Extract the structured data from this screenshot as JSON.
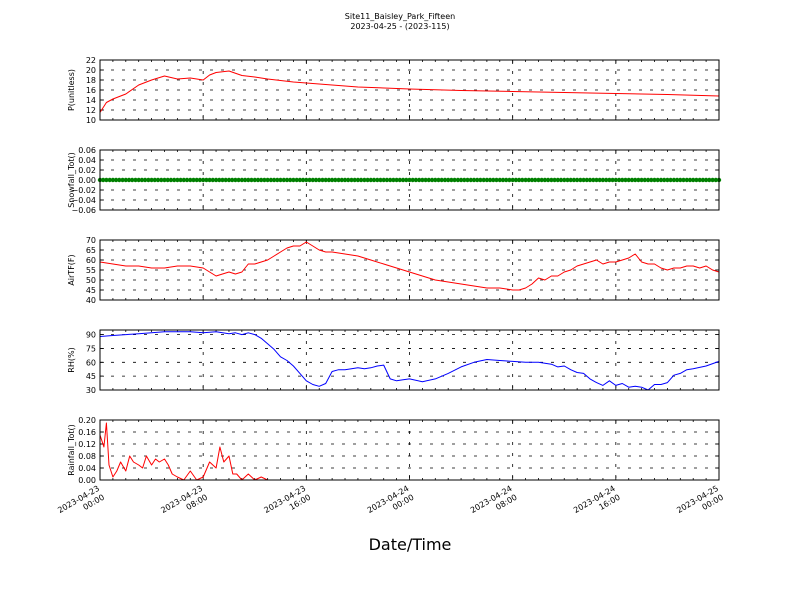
{
  "title_line1": "Site11_Baisley_Park_Fifteen",
  "title_line2": "2023-04-25 - (2023-115)",
  "xlabel": "Date/Time",
  "x_ticks": [
    {
      "value": 0,
      "date": "2023-04-23",
      "time": "00:00"
    },
    {
      "value": 8,
      "date": "2023-04-23",
      "time": "08:00"
    },
    {
      "value": 16,
      "date": "2023-04-23",
      "time": "16:00"
    },
    {
      "value": 24,
      "date": "2023-04-24",
      "time": "00:00"
    },
    {
      "value": 32,
      "date": "2023-04-24",
      "time": "08:00"
    },
    {
      "value": 40,
      "date": "2023-04-24",
      "time": "16:00"
    },
    {
      "value": 48,
      "date": "2023-04-25",
      "time": "00:00"
    }
  ],
  "chart_data": [
    {
      "type": "line",
      "ylabel": "P(unitless)",
      "ylim": [
        10,
        22
      ],
      "yticks": [
        10,
        12,
        14,
        16,
        18,
        20,
        22
      ],
      "grid": true,
      "color": "#ff0000",
      "x": [
        0,
        0.5,
        1,
        2,
        3,
        4,
        5,
        6,
        7,
        8,
        8.5,
        9,
        10,
        11,
        12,
        13,
        14,
        15,
        16,
        18,
        20,
        24,
        28,
        32,
        36,
        40,
        44,
        48
      ],
      "values": [
        11.5,
        13.5,
        14.2,
        15.2,
        17.0,
        18.0,
        18.8,
        18.2,
        18.4,
        18.0,
        19.0,
        19.5,
        19.8,
        18.9,
        18.6,
        18.2,
        17.9,
        17.6,
        17.4,
        17.0,
        16.6,
        16.2,
        15.9,
        15.7,
        15.5,
        15.3,
        15.1,
        14.8
      ]
    },
    {
      "type": "scatter",
      "ylabel": "Snowfall_Tot()",
      "ylim": [
        -0.06,
        0.06
      ],
      "yticks": [
        "−0.06",
        "−0.04",
        "−0.02",
        "0.00",
        "0.02",
        "0.04",
        "0.06"
      ],
      "grid": true,
      "color": "#008000",
      "x_range": [
        0,
        48
      ],
      "constant_value": 0.0
    },
    {
      "type": "line",
      "ylabel": "AirTF(F)",
      "ylim": [
        40,
        70
      ],
      "yticks": [
        40,
        45,
        50,
        55,
        60,
        65,
        70
      ],
      "grid": true,
      "color": "#ff0000",
      "x": [
        0,
        1,
        2,
        3,
        4,
        5,
        6,
        7,
        8,
        8.5,
        9,
        9.5,
        10,
        10.5,
        11,
        11.5,
        12,
        12.5,
        13,
        13.5,
        14,
        14.5,
        15,
        15.5,
        16,
        16.5,
        17,
        17.5,
        18,
        19,
        20,
        21,
        22,
        23,
        24,
        25,
        26,
        27,
        28,
        29,
        30,
        31,
        32,
        32.5,
        33,
        33.5,
        34,
        34.5,
        35,
        35.5,
        36,
        36.5,
        37,
        37.5,
        38,
        38.5,
        39,
        39.5,
        40,
        40.5,
        41,
        41.5,
        42,
        42.5,
        43,
        43.5,
        44,
        44.5,
        45,
        45.5,
        46,
        46.5,
        47,
        47.5,
        48
      ],
      "values": [
        59,
        58,
        57,
        57,
        56,
        56,
        57,
        57,
        56,
        54,
        52,
        53,
        54,
        53,
        54,
        58,
        58,
        59,
        60,
        62,
        64,
        66,
        67,
        67,
        69,
        67,
        65,
        64,
        64,
        63,
        62,
        60,
        58,
        56,
        54,
        52,
        50,
        49,
        48,
        47,
        46,
        46,
        45,
        45,
        46,
        48,
        51,
        50,
        52,
        52,
        54,
        55,
        57,
        58,
        59,
        60,
        58,
        59,
        59,
        60,
        61,
        63,
        59,
        58,
        58,
        56,
        55,
        56,
        56,
        57,
        57,
        56,
        57,
        55,
        54
      ]
    },
    {
      "type": "line",
      "ylabel": "RH(%)",
      "ylim": [
        30,
        95
      ],
      "yticks": [
        30,
        45,
        60,
        75,
        90
      ],
      "grid": true,
      "color": "#0000ff",
      "x": [
        0,
        1,
        2,
        3,
        4,
        5,
        6,
        7,
        8,
        9,
        10,
        10.5,
        11,
        11.5,
        12,
        12.5,
        13,
        13.5,
        14,
        14.5,
        15,
        15.5,
        16,
        16.5,
        17,
        17.5,
        18,
        18.5,
        19,
        19.5,
        20,
        20.5,
        21,
        21.5,
        22,
        22.5,
        23,
        23.5,
        24,
        25,
        26,
        27,
        28,
        29,
        30,
        31,
        32,
        33,
        34,
        34.5,
        35,
        35.5,
        36,
        36.5,
        37,
        37.5,
        38,
        38.5,
        39,
        39.5,
        40,
        40.5,
        41,
        41.5,
        42,
        42.5,
        43,
        43.5,
        44,
        44.5,
        45,
        45.5,
        46,
        47,
        48
      ],
      "values": [
        88,
        89,
        90,
        91,
        92,
        93,
        93,
        93,
        92,
        93,
        91,
        92,
        90,
        92,
        90,
        86,
        80,
        74,
        66,
        62,
        56,
        48,
        40,
        36,
        34,
        37,
        50,
        52,
        52,
        53,
        54,
        53,
        54,
        56,
        57,
        42,
        40,
        41,
        42,
        39,
        42,
        48,
        55,
        60,
        63,
        62,
        61,
        60,
        60,
        59,
        58,
        55,
        56,
        52,
        49,
        48,
        42,
        38,
        35,
        40,
        35,
        37,
        33,
        34,
        33,
        30,
        36,
        36,
        38,
        46,
        48,
        52,
        53,
        56,
        61
      ]
    },
    {
      "type": "line",
      "ylabel": "Rainfall_Tot()",
      "ylim": [
        0.0,
        0.2
      ],
      "yticks": [
        "0.00",
        "0.04",
        "0.08",
        "0.12",
        "0.16",
        "0.20"
      ],
      "grid": true,
      "color": "#ff0000",
      "x": [
        0,
        0.3,
        0.5,
        0.7,
        1.0,
        1.3,
        1.6,
        2.0,
        2.3,
        2.6,
        3.0,
        3.3,
        3.6,
        4.0,
        4.3,
        4.6,
        5.0,
        5.3,
        5.6,
        6.0,
        6.5,
        7.0,
        7.5,
        8.0,
        8.5,
        9.0,
        9.3,
        9.6,
        10.0,
        10.3,
        10.6,
        11.0,
        11.5,
        12.0,
        12.5,
        13.0,
        13.5,
        14.0,
        16.0,
        20.0,
        24.0,
        30.0,
        36.0,
        42.0,
        48.0
      ],
      "values": [
        0.15,
        0.11,
        0.19,
        0.05,
        0.01,
        0.03,
        0.06,
        0.03,
        0.08,
        0.06,
        0.05,
        0.04,
        0.08,
        0.05,
        0.07,
        0.06,
        0.07,
        0.05,
        0.02,
        0.01,
        0.0,
        0.03,
        0.0,
        0.01,
        0.06,
        0.04,
        0.11,
        0.06,
        0.08,
        0.02,
        0.02,
        0.0,
        0.02,
        0.0,
        0.01,
        0.0,
        0.0,
        0.0,
        0.0,
        0.0,
        0.0,
        0.0,
        0.0,
        0.0,
        0.0
      ]
    }
  ]
}
